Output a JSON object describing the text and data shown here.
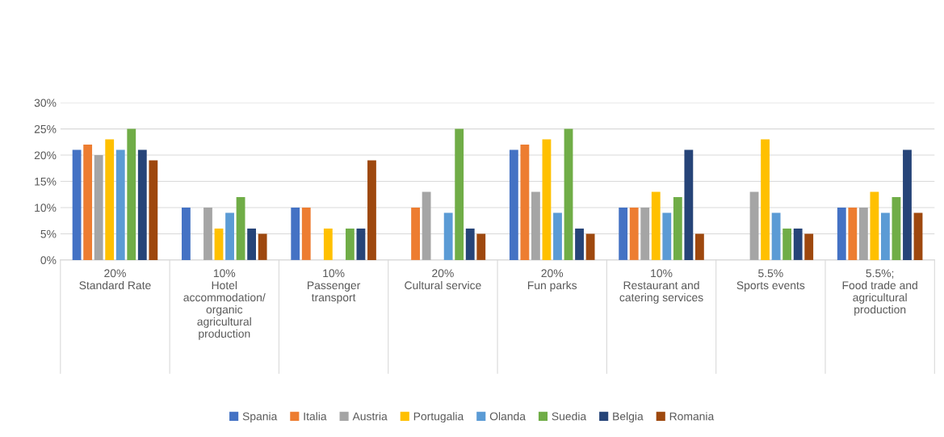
{
  "chart_data": {
    "type": "bar",
    "categories": [
      "20%\nStandard Rate",
      "10%\nHotel\naccommodation/\norganic\nagricultural\nproduction",
      "10%\nPassenger\ntransport",
      "20%\nCultural service",
      "20%\nFun parks",
      "10%\nRestaurant and\ncatering services",
      "5.5%\nSports events",
      "5.5%;\nFood trade and\nagricultural\nproduction"
    ],
    "series": [
      {
        "name": "Spania",
        "color": "#4472c4",
        "values": [
          21,
          10,
          10,
          null,
          21,
          10,
          null,
          10
        ]
      },
      {
        "name": "Italia",
        "color": "#ed7d31",
        "values": [
          22,
          null,
          10,
          10,
          22,
          10,
          null,
          10
        ]
      },
      {
        "name": "Austria",
        "color": "#a5a5a5",
        "values": [
          20,
          10,
          null,
          13,
          13,
          10,
          13,
          10
        ]
      },
      {
        "name": "Portugalia",
        "color": "#ffc000",
        "values": [
          23,
          6,
          6,
          null,
          23,
          13,
          23,
          13
        ]
      },
      {
        "name": "Olanda",
        "color": "#5b9bd5",
        "values": [
          21,
          9,
          null,
          9,
          9,
          9,
          9,
          9
        ]
      },
      {
        "name": "Suedia",
        "color": "#70ad47",
        "values": [
          25,
          12,
          6,
          25,
          25,
          12,
          6,
          12
        ]
      },
      {
        "name": "Belgia",
        "color": "#264478",
        "values": [
          21,
          6,
          6,
          6,
          6,
          21,
          6,
          21
        ]
      },
      {
        "name": "Romania",
        "color": "#9e480e",
        "values": [
          19,
          5,
          19,
          5,
          5,
          5,
          5,
          9
        ]
      }
    ],
    "ylim": [
      0,
      30
    ],
    "yticks": [
      {
        "value": 0,
        "label": "0%"
      },
      {
        "value": 5,
        "label": "5%"
      },
      {
        "value": 10,
        "label": "10%"
      },
      {
        "value": 15,
        "label": "15%"
      },
      {
        "value": 20,
        "label": "20%"
      },
      {
        "value": 25,
        "label": "25%"
      },
      {
        "value": 30,
        "label": "30%"
      }
    ],
    "grid": "y",
    "legend": "bottom"
  }
}
